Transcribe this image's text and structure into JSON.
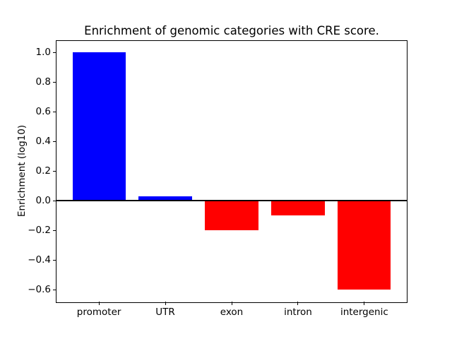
{
  "chart_data": {
    "type": "bar",
    "title": "Enrichment of genomic categories with CRE score.",
    "xlabel": "",
    "ylabel": "Enrichment (log10)",
    "categories": [
      "promoter",
      "UTR",
      "exon",
      "intron",
      "intergenic"
    ],
    "values": [
      1.0,
      0.03,
      -0.2,
      -0.1,
      -0.6
    ],
    "bar_colors": [
      "#0000ff",
      "#0000ff",
      "#ff0000",
      "#ff0000",
      "#ff0000"
    ],
    "bar_width": 0.8,
    "ylim": [
      -0.68,
      1.08
    ],
    "xlim": [
      -0.64,
      4.64
    ],
    "yticks": [
      1.0,
      0.8,
      0.6,
      0.4,
      0.2,
      0.0,
      -0.2,
      -0.4,
      -0.6
    ],
    "ytick_labels": [
      "1.0",
      "0.8",
      "0.6",
      "0.4",
      "0.2",
      "0.0",
      "−0.2",
      "−0.4",
      "−0.6"
    ],
    "grid": false,
    "legend": null,
    "zero_line": true,
    "zero_line_color": "#000000",
    "background_color": "#ffffff",
    "positive_color": "#0000ff",
    "negative_color": "#ff0000"
  }
}
